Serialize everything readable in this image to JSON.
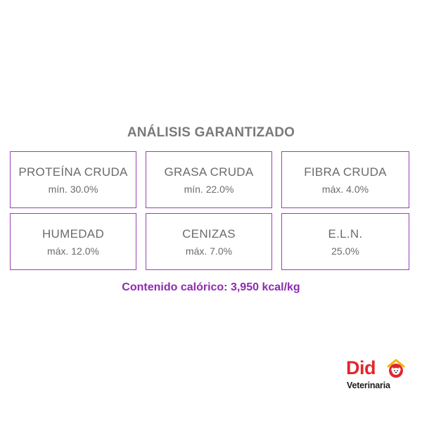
{
  "title": "ANÁLISIS GARANTIZADO",
  "analysis": [
    {
      "label": "PROTEÍNA CRUDA",
      "value": "mín. 30.0%"
    },
    {
      "label": "GRASA CRUDA",
      "value": "mín. 22.0%"
    },
    {
      "label": "FIBRA CRUDA",
      "value": "máx. 4.0%"
    },
    {
      "label": "HUMEDAD",
      "value": "máx. 12.0%"
    },
    {
      "label": "CENIZAS",
      "value": "máx. 7.0%"
    },
    {
      "label": "E.L.N.",
      "value": "25.0%"
    }
  ],
  "calorie_text": "Contenido calórico: 3,950 kcal/kg",
  "logo": {
    "word": "Did",
    "subtitle": "Veterinaria",
    "brand_color": "#e3262e",
    "accent_color": "#f2b700",
    "icon": "dog-house-icon"
  },
  "colors": {
    "border": "#9b3fb5",
    "calorie": "#8e2bb0",
    "text": "#6b6b6b"
  }
}
